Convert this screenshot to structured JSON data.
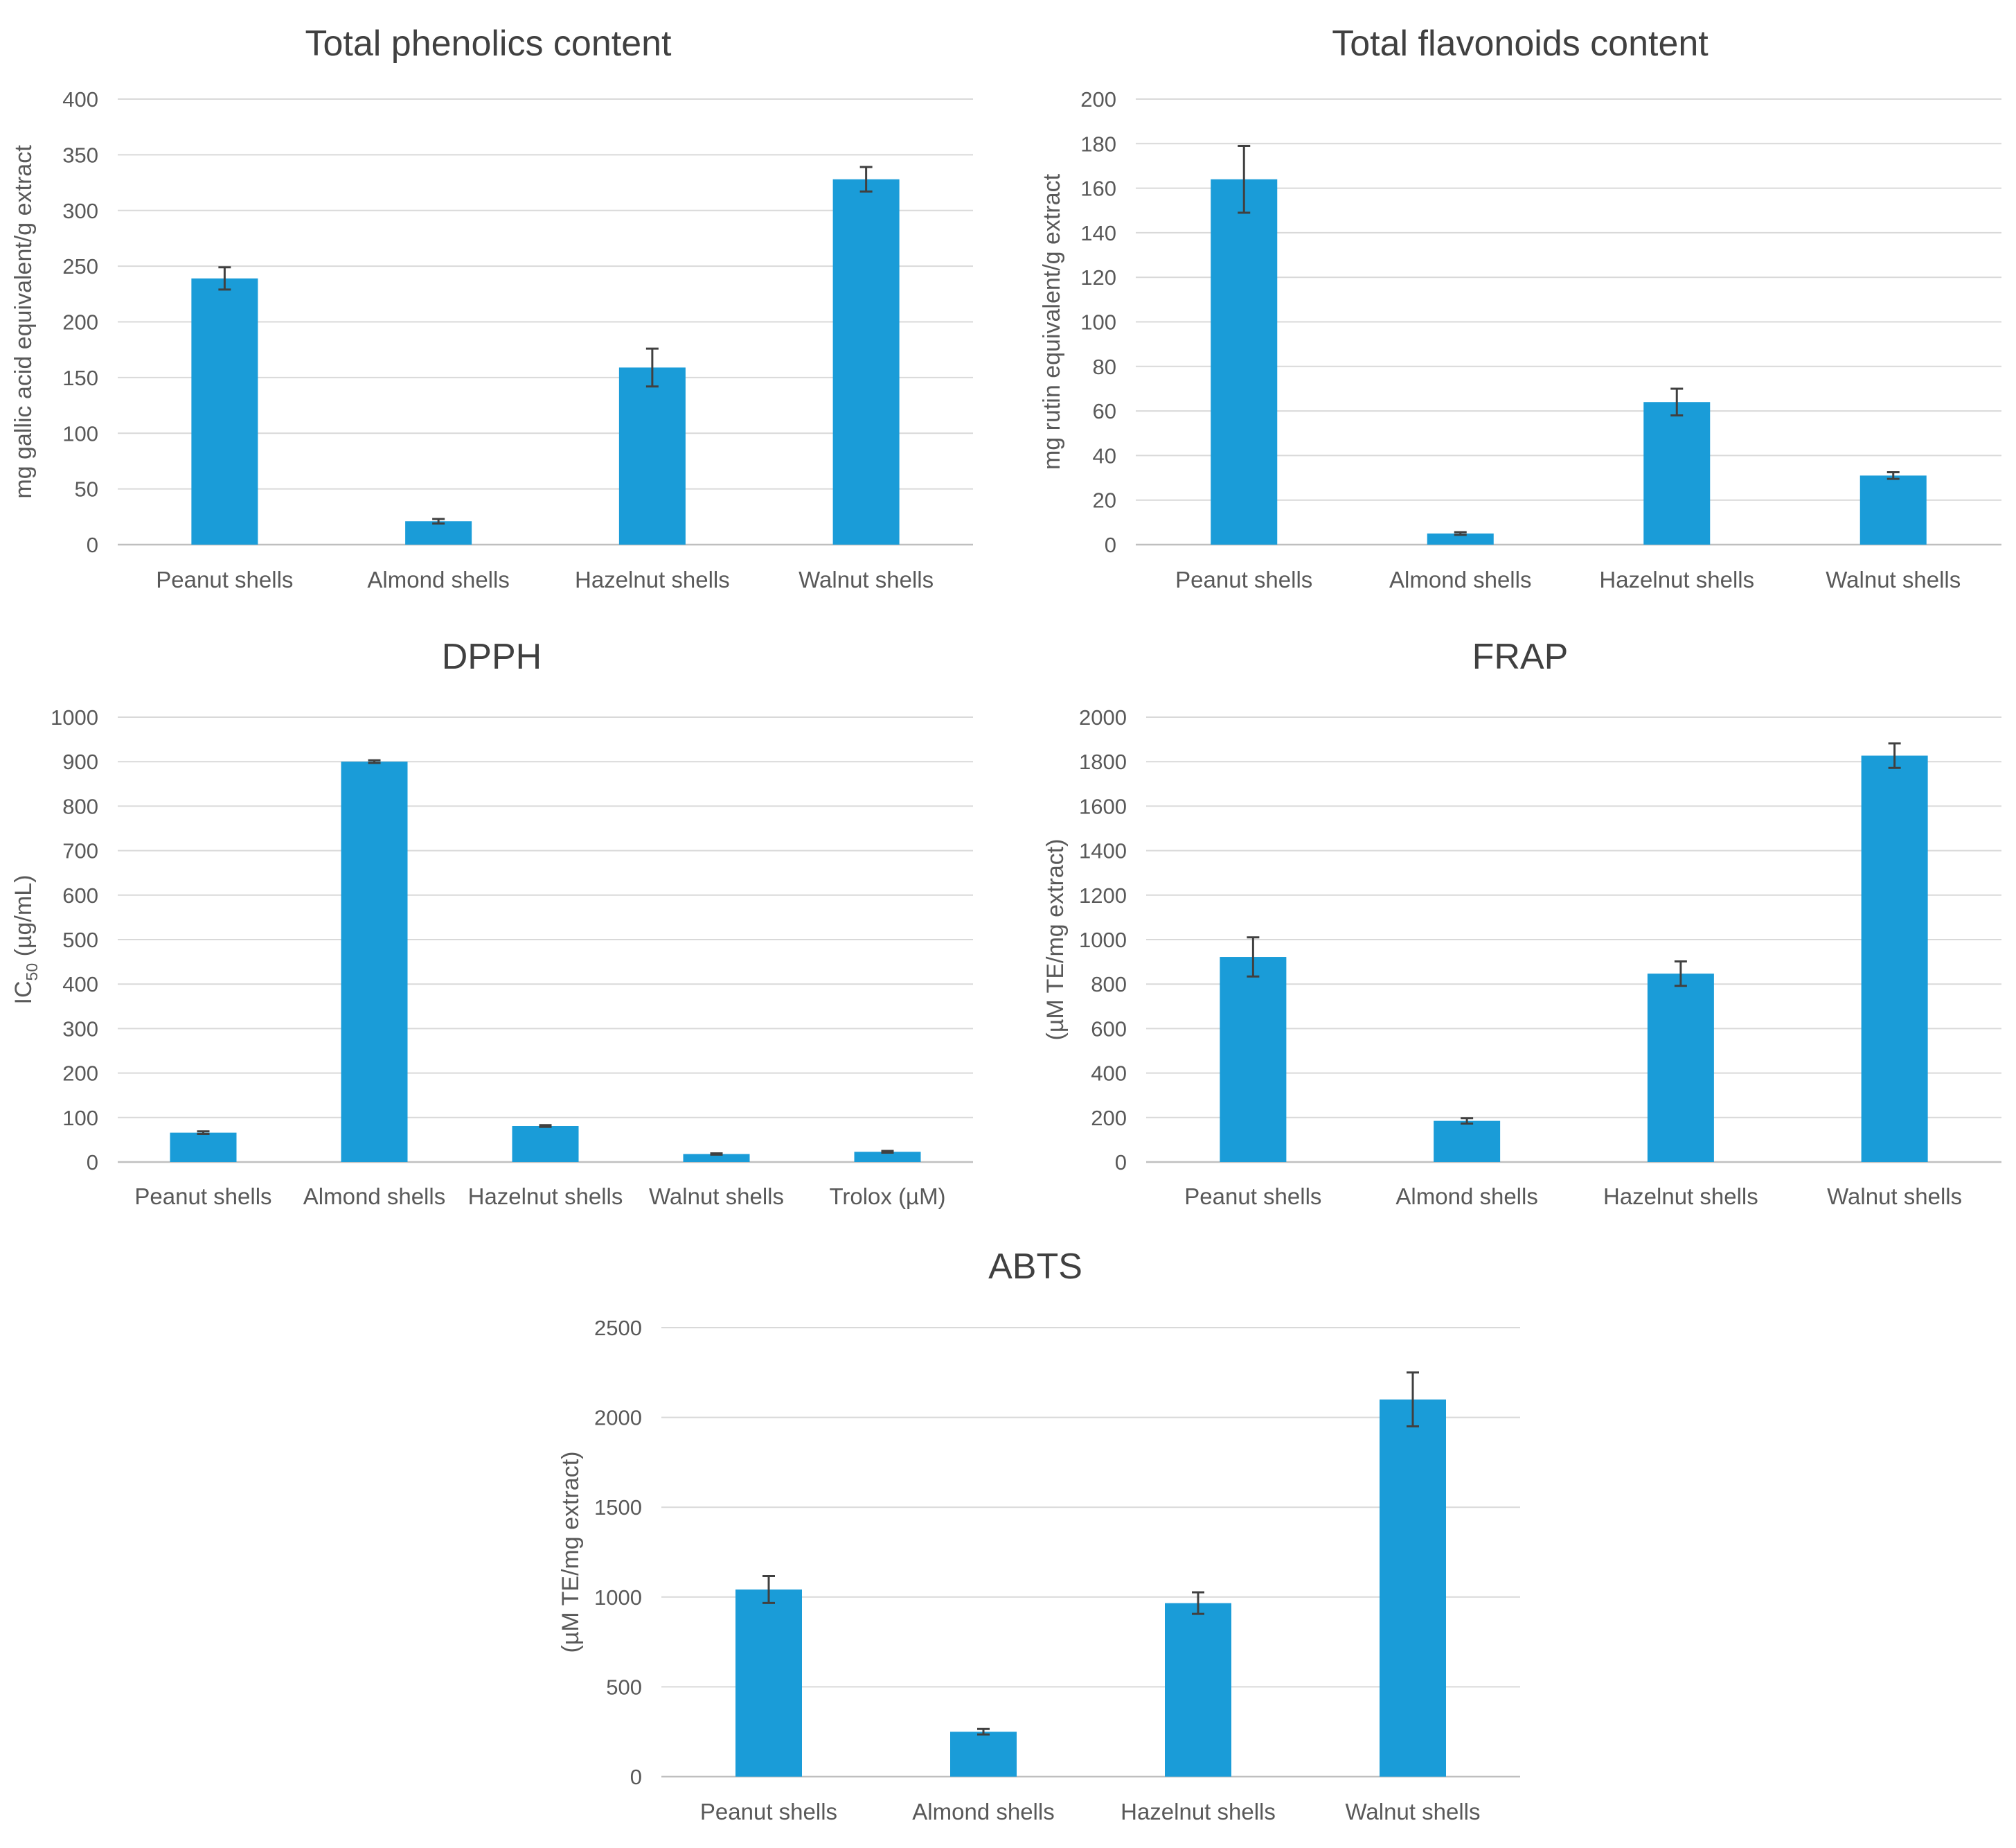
{
  "colors": {
    "bar": "#1a9cd8"
  },
  "chart_data": [
    {
      "type": "bar",
      "title": "Total phenolics content",
      "ylabel": "mg gallic acid equivalent/g extract",
      "categories": [
        "Peanut shells",
        "Almond shells",
        "Hazelnut shells",
        "Walnut shells"
      ],
      "values": [
        239,
        21,
        159,
        328
      ],
      "errors": [
        10,
        2,
        17,
        11
      ],
      "ylim": [
        0,
        400
      ],
      "yticks": [
        0,
        50,
        100,
        150,
        200,
        250,
        300,
        350,
        400
      ],
      "ytick_labels": [
        "0",
        "50",
        "100",
        "150",
        "200",
        "250",
        "300",
        "350",
        "400"
      ],
      "grid": true,
      "legend": "none"
    },
    {
      "type": "bar",
      "title": "Total flavonoids content",
      "ylabel": "mg rutin equivalent/g extract",
      "categories": [
        "Peanut shells",
        "Almond shells",
        "Hazelnut shells",
        "Walnut shells"
      ],
      "values": [
        164,
        5,
        64,
        31
      ],
      "errors": [
        15,
        0.6,
        6,
        1.5
      ],
      "ylim": [
        0,
        200
      ],
      "yticks": [
        0,
        20,
        40,
        60,
        80,
        100,
        120,
        140,
        160,
        180,
        200
      ],
      "ytick_labels": [
        "0",
        "20",
        "40",
        "60",
        "80",
        "100",
        "120",
        "140",
        "160",
        "180",
        "200"
      ],
      "grid": true,
      "legend": "none"
    },
    {
      "type": "bar",
      "title": "DPPH",
      "ylabel": "IC50 (µg/mL)",
      "ylabel_main": "IC",
      "ylabel_sub": "50",
      "ylabel_rest": " (µg/mL)",
      "categories": [
        "Peanut shells",
        "Almond shells",
        "Hazelnut shells",
        "Walnut shells",
        "Trolox (µM)"
      ],
      "values": [
        66,
        900,
        81,
        18,
        23
      ],
      "errors": [
        3,
        3,
        2,
        1.5,
        2
      ],
      "ylim": [
        0,
        1000
      ],
      "yticks": [
        0,
        100,
        200,
        300,
        400,
        500,
        600,
        700,
        800,
        900,
        1000
      ],
      "ytick_labels": [
        "0",
        "100",
        "200",
        "300",
        "400",
        "500",
        "600",
        "700",
        "800",
        "900",
        "1000"
      ],
      "grid": true,
      "legend": "none"
    },
    {
      "type": "bar",
      "title": "FRAP",
      "ylabel": "(µM TE/mg extract)",
      "categories": [
        "Peanut shells",
        "Almond shells",
        "Hazelnut shells",
        "Walnut shells"
      ],
      "values": [
        922,
        185,
        847,
        1827
      ],
      "errors": [
        88,
        12,
        55,
        55
      ],
      "ylim": [
        0,
        2000
      ],
      "yticks": [
        0,
        200,
        400,
        600,
        800,
        1000,
        1200,
        1400,
        1600,
        1800,
        2000
      ],
      "ytick_labels": [
        "0",
        "200",
        "400",
        "600",
        "800",
        "1000",
        "1200",
        "1400",
        "1600",
        "1800",
        "2000"
      ],
      "grid": true,
      "legend": "none"
    },
    {
      "type": "bar",
      "title": "ABTS",
      "ylabel": "(µM TE/mg extract)",
      "categories": [
        "Peanut shells",
        "Almond shells",
        "Hazelnut shells",
        "Walnut shells"
      ],
      "values": [
        1042,
        250,
        966,
        2100
      ],
      "errors": [
        75,
        15,
        60,
        150
      ],
      "ylim": [
        0,
        2500
      ],
      "yticks": [
        0,
        500,
        1000,
        1500,
        2000,
        2500
      ],
      "ytick_labels": [
        "0",
        "500",
        "1000",
        "1500",
        "2000",
        "2500"
      ],
      "grid": true,
      "legend": "none"
    }
  ]
}
